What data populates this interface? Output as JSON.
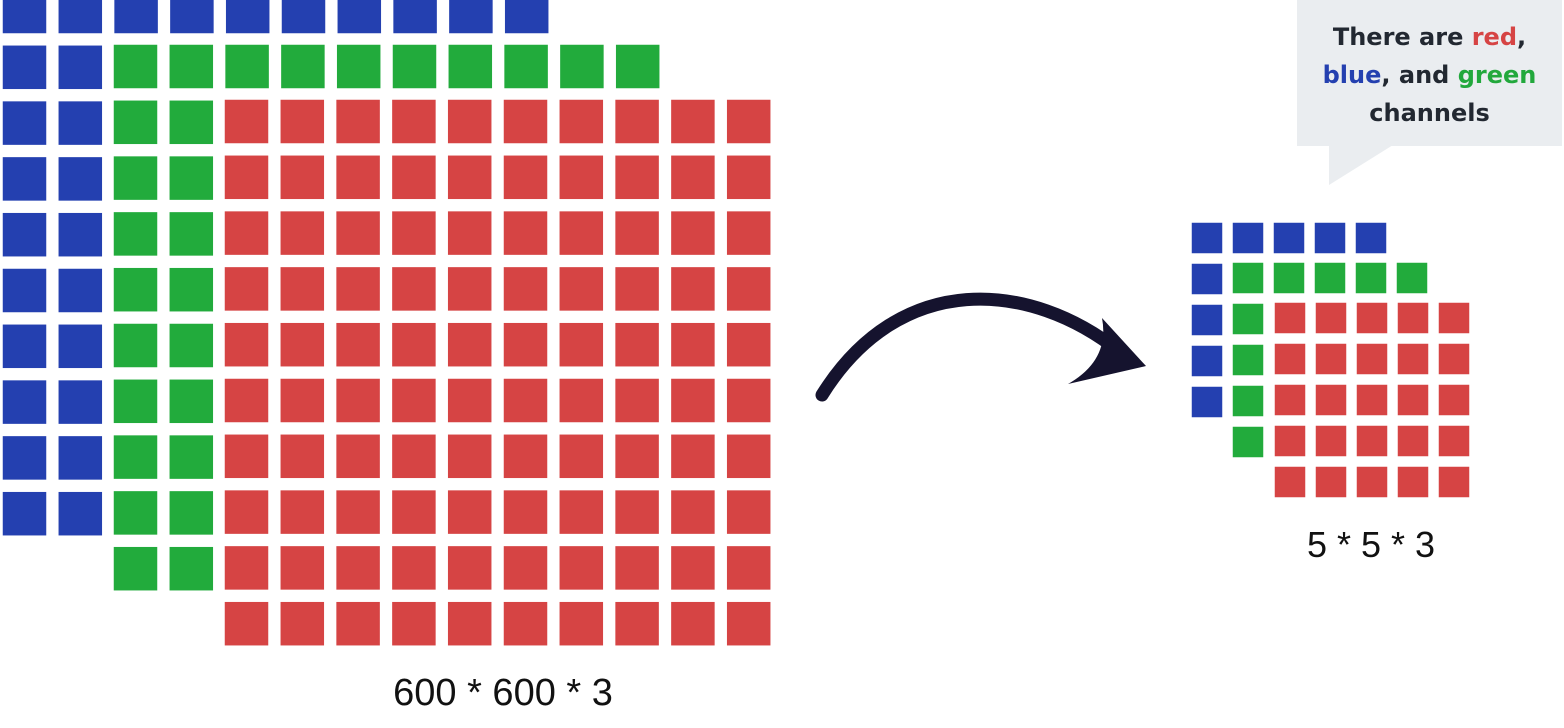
{
  "colors": {
    "red": "#d64444",
    "green": "#22ab3c",
    "blue": "#2440b0",
    "arrow": "#15132e",
    "bubble": "#eaedf0",
    "text": "#222831"
  },
  "large_tensor": {
    "label": "600 * 600 * 3",
    "grid_size": 10,
    "channels": [
      "blue",
      "green",
      "red"
    ]
  },
  "small_tensor": {
    "label": "5 * 5 * 3",
    "grid_size": 5,
    "channels": [
      "blue",
      "green",
      "red"
    ]
  },
  "arrow": {
    "meaning": "transforms-to"
  },
  "speech_bubble": {
    "prefix": "There are ",
    "word_red": "red",
    "sep1": ",",
    "word_blue": "blue",
    "sep2": ", and ",
    "word_green": "green",
    "suffix": "channels"
  }
}
